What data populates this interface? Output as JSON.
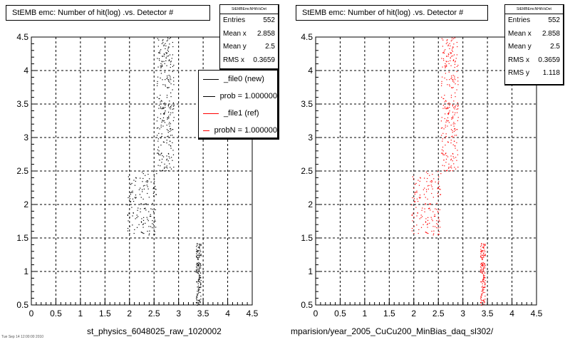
{
  "panels": [
    {
      "title": "StEMB emc: Number of hit(log) .vs. Detector #",
      "stats": {
        "header": "StEMBEmcNHitVsDet",
        "rows": [
          {
            "label": "Entries",
            "value": "552"
          },
          {
            "label": "Mean x",
            "value": "2.858"
          },
          {
            "label": "Mean y",
            "value": "2.5"
          },
          {
            "label": "RMS x",
            "value": "0.3659"
          }
        ]
      },
      "legend": [
        {
          "label": "_file0 (new)",
          "color": "#000000"
        },
        {
          "label": "prob = 1.000000",
          "color": "#000000"
        },
        {
          "label": "_file1 (ref)",
          "color": "#ff0000"
        },
        {
          "label": "probN = 1.000000",
          "color": "#ff0000"
        }
      ],
      "caption": "st_physics_6048025_raw_1020002"
    },
    {
      "title": "StEMB emc: Number of hit(log) .vs. Detector #",
      "stats": {
        "header": "StEMBEmcNHitVsDet",
        "rows": [
          {
            "label": "Entries",
            "value": "552"
          },
          {
            "label": "Mean x",
            "value": "2.858"
          },
          {
            "label": "Mean y",
            "value": "2.5"
          },
          {
            "label": "RMS x",
            "value": "0.3659"
          },
          {
            "label": "RMS y",
            "value": "1.118"
          }
        ]
      },
      "caption": "mparision/year_2005_CuCu200_MinBias_daq_sl302/"
    }
  ],
  "footnote": "Tue Sep 14 12:00:00 2010",
  "chart_data": [
    {
      "type": "scatter",
      "title": "StEMB emc: Number of hit(log) .vs. Detector #",
      "xlabel": "",
      "ylabel": "",
      "xlim": [
        0,
        4.5
      ],
      "ylim": [
        0.5,
        4.5
      ],
      "xticks": [
        0,
        0.5,
        1,
        1.5,
        2,
        2.5,
        3,
        3.5,
        4,
        4.5
      ],
      "yticks": [
        0.5,
        1,
        1.5,
        2,
        2.5,
        3,
        3.5,
        4,
        4.5
      ],
      "grid": true,
      "legend_position": "top-right",
      "color": "#000000",
      "series": [
        {
          "name": "_file0 (new)",
          "clusters": [
            {
              "x": [
                2.55,
                2.9
              ],
              "y": [
                2.5,
                4.5
              ],
              "n": 260
            },
            {
              "x": [
                1.95,
                2.55
              ],
              "y": [
                1.55,
                2.5
              ],
              "n": 150
            },
            {
              "x": [
                3.35,
                3.45
              ],
              "y": [
                0.5,
                1.45
              ],
              "n": 140
            }
          ]
        }
      ]
    },
    {
      "type": "scatter",
      "title": "StEMB emc: Number of hit(log) .vs. Detector #",
      "xlabel": "",
      "ylabel": "",
      "xlim": [
        0,
        4.5
      ],
      "ylim": [
        0.5,
        4.5
      ],
      "xticks": [
        0,
        0.5,
        1,
        1.5,
        2,
        2.5,
        3,
        3.5,
        4,
        4.5
      ],
      "yticks": [
        0.5,
        1,
        1.5,
        2,
        2.5,
        3,
        3.5,
        4,
        4.5
      ],
      "grid": true,
      "color": "#ff0000",
      "series": [
        {
          "name": "_file1 (ref)",
          "clusters": [
            {
              "x": [
                2.55,
                2.9
              ],
              "y": [
                2.5,
                4.5
              ],
              "n": 260
            },
            {
              "x": [
                1.95,
                2.55
              ],
              "y": [
                1.55,
                2.5
              ],
              "n": 150
            },
            {
              "x": [
                3.35,
                3.45
              ],
              "y": [
                0.5,
                1.45
              ],
              "n": 140
            }
          ]
        }
      ]
    }
  ]
}
